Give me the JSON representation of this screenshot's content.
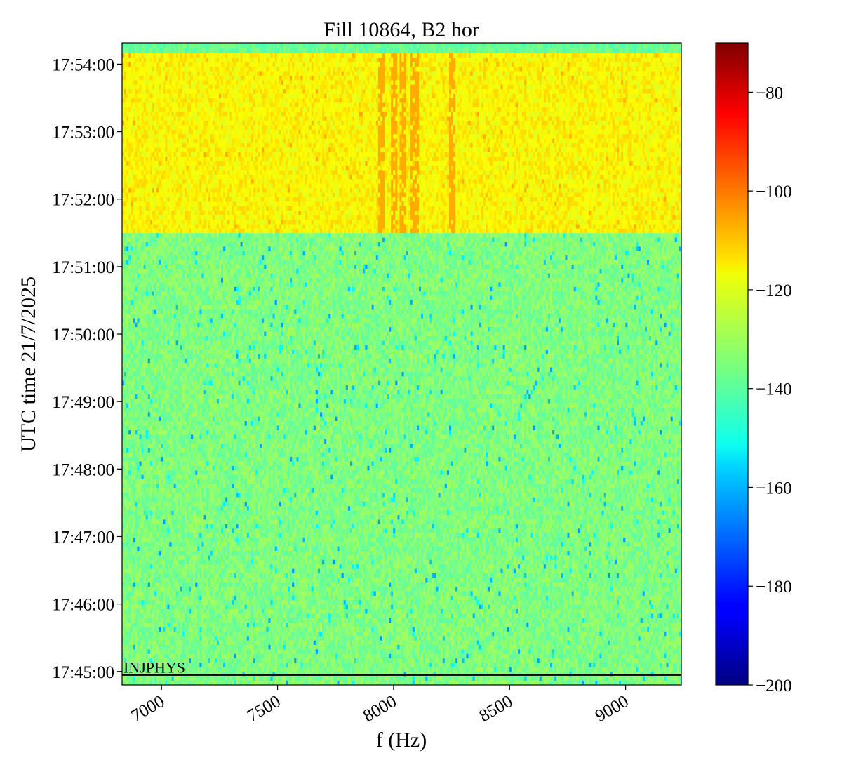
{
  "chart_data": {
    "type": "heatmap",
    "title": "Fill 10864, B2 hor",
    "xlabel": "f (Hz)",
    "ylabel": "UTC time 21/7/2025",
    "xlim": [
      6830,
      9240
    ],
    "ylim_seconds_after_17_44_00": [
      48,
      619
    ],
    "x_ticks": [
      {
        "value": 7000,
        "label": "7000"
      },
      {
        "value": 7500,
        "label": "7500"
      },
      {
        "value": 8000,
        "label": "8000"
      },
      {
        "value": 8500,
        "label": "8500"
      },
      {
        "value": 9000,
        "label": "9000"
      }
    ],
    "y_ticks": [
      {
        "value": "17:45:00",
        "label": "17:45:00"
      },
      {
        "value": "17:46:00",
        "label": "17:46:00"
      },
      {
        "value": "17:47:00",
        "label": "17:47:00"
      },
      {
        "value": "17:48:00",
        "label": "17:48:00"
      },
      {
        "value": "17:49:00",
        "label": "17:49:00"
      },
      {
        "value": "17:50:00",
        "label": "17:50:00"
      },
      {
        "value": "17:51:00",
        "label": "17:51:00"
      },
      {
        "value": "17:52:00",
        "label": "17:52:00"
      },
      {
        "value": "17:53:00",
        "label": "17:53:00"
      },
      {
        "value": "17:54:00",
        "label": "17:54:00"
      }
    ],
    "colorbar": {
      "colormap": "jet",
      "range": [
        -200,
        -70
      ],
      "ticks": [
        {
          "value": -80,
          "label": "−80"
        },
        {
          "value": -100,
          "label": "−100"
        },
        {
          "value": -120,
          "label": "−120"
        },
        {
          "value": -140,
          "label": "−140"
        },
        {
          "value": -160,
          "label": "−160"
        },
        {
          "value": -180,
          "label": "−180"
        },
        {
          "value": -200,
          "label": "−200"
        }
      ]
    },
    "regions": [
      {
        "t_start": "17:44:48",
        "t_end": "17:51:30",
        "typical_level": -135,
        "noise_range": [
          -165,
          -125
        ]
      },
      {
        "t_start": "17:51:30",
        "t_end": "17:54:10",
        "typical_level": -118,
        "noise_range": [
          -122,
          -110
        ],
        "strong_lines_hz": [
          7950,
          8000,
          8040,
          8090,
          8250
        ],
        "line_level": -105
      },
      {
        "t_start": "17:54:10",
        "t_end": "17:54:19",
        "typical_level": -138
      }
    ],
    "annotations": [
      {
        "text": "INJPHYS",
        "time": "17:44:57",
        "line_color": "#000000"
      }
    ]
  }
}
